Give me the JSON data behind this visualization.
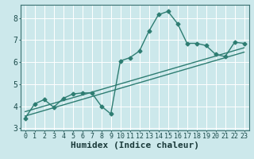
{
  "title": "",
  "xlabel": "Humidex (Indice chaleur)",
  "ylabel": "",
  "background_color": "#cce8eb",
  "grid_color": "#ffffff",
  "line_color": "#2e7d72",
  "xlim": [
    -0.5,
    23.5
  ],
  "ylim": [
    2.9,
    8.6
  ],
  "yticks": [
    3,
    4,
    5,
    6,
    7,
    8
  ],
  "xticks": [
    0,
    1,
    2,
    3,
    4,
    5,
    6,
    7,
    8,
    9,
    10,
    11,
    12,
    13,
    14,
    15,
    16,
    17,
    18,
    19,
    20,
    21,
    22,
    23
  ],
  "main_series_x": [
    0,
    1,
    2,
    3,
    4,
    5,
    6,
    7,
    8,
    9,
    10,
    11,
    12,
    13,
    14,
    15,
    16,
    17,
    18,
    19,
    20,
    21,
    22,
    23
  ],
  "main_series_y": [
    3.45,
    4.1,
    4.3,
    3.95,
    4.35,
    4.55,
    4.6,
    4.6,
    4.0,
    3.65,
    6.05,
    6.2,
    6.5,
    7.4,
    8.15,
    8.3,
    7.75,
    6.85,
    6.85,
    6.75,
    6.35,
    6.25,
    6.9,
    6.85
  ],
  "reg_line1_x": [
    0,
    23
  ],
  "reg_line1_y": [
    3.55,
    6.45
  ],
  "reg_line2_x": [
    0,
    23
  ],
  "reg_line2_y": [
    3.75,
    6.65
  ],
  "font_size": 7,
  "tick_font_size": 6,
  "line_width": 1.0,
  "marker_size": 2.5
}
